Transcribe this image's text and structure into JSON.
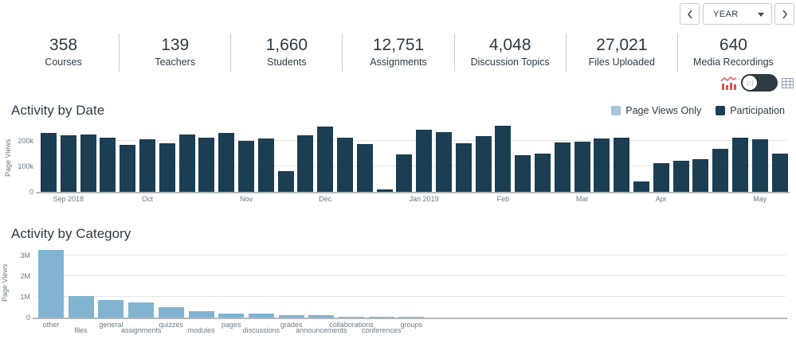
{
  "timeframe": {
    "selected": "YEAR"
  },
  "icons": {
    "prev": "chevron-left-icon",
    "next": "chevron-right-icon",
    "dropdown": "caret-down-icon",
    "chart_view": "line-chart-icon",
    "table_view": "table-grid-icon"
  },
  "colors": {
    "participation": "#1b3e53",
    "page_views_bar": "#81b4d1",
    "legend_page_views": "#a5c6d8",
    "accent_red": "#d9574e",
    "text": "#2d3b45",
    "muted_text": "#6b7a86",
    "border": "#c7cdd1"
  },
  "view_toggle": {
    "state": "chart"
  },
  "stats": [
    {
      "value": "358",
      "label": "Courses"
    },
    {
      "value": "139",
      "label": "Teachers"
    },
    {
      "value": "1,660",
      "label": "Students"
    },
    {
      "value": "12,751",
      "label": "Assignments"
    },
    {
      "value": "4,048",
      "label": "Discussion Topics"
    },
    {
      "value": "27,021",
      "label": "Files Uploaded"
    },
    {
      "value": "640",
      "label": "Media Recordings"
    }
  ],
  "chart_data": [
    {
      "type": "bar",
      "title": "Activity by Date",
      "xlabel": "",
      "ylabel": "Page Views",
      "ylim": [
        0,
        270000
      ],
      "grid": true,
      "legend_position": "top-right",
      "legend": [
        {
          "label": "Page Views Only",
          "color": "#a5c6d8"
        },
        {
          "label": "Participation",
          "color": "#1b3e53"
        }
      ],
      "series_name": "Participation",
      "values": [
        232000,
        224000,
        227000,
        215000,
        186000,
        207000,
        190000,
        227000,
        215000,
        233000,
        200000,
        209000,
        82000,
        224000,
        257000,
        212000,
        189000,
        10000,
        148000,
        246000,
        236000,
        190000,
        220000,
        262000,
        143000,
        151000,
        196000,
        199000,
        210000,
        215000,
        42000,
        113000,
        122000,
        130000,
        170000,
        214000,
        206000,
        150000
      ],
      "y_ticks": [
        {
          "value": 0,
          "label": "0"
        },
        {
          "value": 100000,
          "label": "100k"
        },
        {
          "value": 200000,
          "label": "200k"
        }
      ],
      "x_tick_labels": [
        {
          "index": 1,
          "label": "Sep 2018"
        },
        {
          "index": 5,
          "label": "Oct"
        },
        {
          "index": 10,
          "label": "Nov"
        },
        {
          "index": 14,
          "label": "Dec"
        },
        {
          "index": 19,
          "label": "Jan 2019"
        },
        {
          "index": 23,
          "label": "Feb"
        },
        {
          "index": 27,
          "label": "Mar"
        },
        {
          "index": 31,
          "label": "Apr"
        },
        {
          "index": 36,
          "label": "May"
        }
      ]
    },
    {
      "type": "bar",
      "title": "Activity by Category",
      "xlabel": "",
      "ylabel": "Page Views",
      "ylim": [
        0,
        3400000
      ],
      "grid": true,
      "categories": [
        "other",
        "files",
        "general",
        "assignments",
        "quizzes",
        "modules",
        "pages",
        "discussions",
        "grades",
        "announcements",
        "collaborations",
        "conferences",
        "groups"
      ],
      "values": [
        3280000,
        1050000,
        860000,
        730000,
        490000,
        300000,
        210000,
        190000,
        100000,
        120000,
        30000,
        40000,
        30000
      ],
      "y_ticks": [
        {
          "value": 0,
          "label": "0"
        },
        {
          "value": 1000000,
          "label": "1M"
        },
        {
          "value": 2000000,
          "label": "2M"
        },
        {
          "value": 3000000,
          "label": "3M"
        }
      ]
    }
  ]
}
